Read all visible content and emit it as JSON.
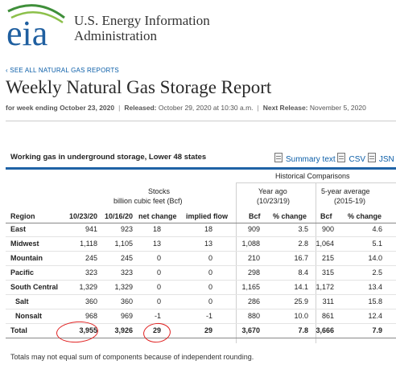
{
  "header": {
    "logo_text": "eia",
    "agency_line1": "U.S. Energy Information",
    "agency_line2": "Administration"
  },
  "back_link": "‹ SEE ALL NATURAL GAS REPORTS",
  "title": "Weekly Natural Gas Storage Report",
  "meta": {
    "week_label": "for week ending October 23, 2020",
    "released_label": "Released:",
    "released_value": "October 29, 2020 at 10:30 a.m.",
    "next_label": "Next Release:",
    "next_value": "November 5, 2020"
  },
  "section_title": "Working gas in underground storage, Lower 48 states",
  "downloads": {
    "summary": "Summary text",
    "csv": "CSV",
    "json": "JSN",
    "icon": "document-icon"
  },
  "table": {
    "historical_title": "Historical Comparisons",
    "stocks_title": "Stocks",
    "stocks_sub": "billion cubic feet (Bcf)",
    "year_ago_title": "Year ago",
    "year_ago_sub": "(10/23/19)",
    "five_year_title": "5-year average",
    "five_year_sub": "(2015-19)",
    "columns": [
      "Region",
      "10/23/20",
      "10/16/20",
      "net change",
      "implied flow",
      "Bcf",
      "% change",
      "Bcf",
      "% change"
    ],
    "rows": [
      {
        "region": "East",
        "c1": "941",
        "c2": "923",
        "net": "18",
        "flow": "18",
        "ya_bcf": "909",
        "ya_pct": "3.5",
        "fy_bcf": "900",
        "fy_pct": "4.6"
      },
      {
        "region": "Midwest",
        "c1": "1,118",
        "c2": "1,105",
        "net": "13",
        "flow": "13",
        "ya_bcf": "1,088",
        "ya_pct": "2.8",
        "fy_bcf": "1,064",
        "fy_pct": "5.1"
      },
      {
        "region": "Mountain",
        "c1": "245",
        "c2": "245",
        "net": "0",
        "flow": "0",
        "ya_bcf": "210",
        "ya_pct": "16.7",
        "fy_bcf": "215",
        "fy_pct": "14.0"
      },
      {
        "region": "Pacific",
        "c1": "323",
        "c2": "323",
        "net": "0",
        "flow": "0",
        "ya_bcf": "298",
        "ya_pct": "8.4",
        "fy_bcf": "315",
        "fy_pct": "2.5"
      },
      {
        "region": "South Central",
        "c1": "1,329",
        "c2": "1,329",
        "net": "0",
        "flow": "0",
        "ya_bcf": "1,165",
        "ya_pct": "14.1",
        "fy_bcf": "1,172",
        "fy_pct": "13.4"
      },
      {
        "region": "Salt",
        "c1": "360",
        "c2": "360",
        "net": "0",
        "flow": "0",
        "ya_bcf": "286",
        "ya_pct": "25.9",
        "fy_bcf": "311",
        "fy_pct": "15.8"
      },
      {
        "region": "Nonsalt",
        "c1": "968",
        "c2": "969",
        "net": "-1",
        "flow": "-1",
        "ya_bcf": "880",
        "ya_pct": "10.0",
        "fy_bcf": "861",
        "fy_pct": "12.4"
      }
    ],
    "total": {
      "region": "Total",
      "c1": "3,955",
      "c2": "3,926",
      "net": "29",
      "flow": "29",
      "ya_bcf": "3,670",
      "ya_pct": "7.8",
      "fy_bcf": "3,666",
      "fy_pct": "7.9"
    }
  },
  "footnote": "Totals may not equal sum of components because of independent rounding.",
  "colors": {
    "accent": "#1f63a6",
    "link": "#0b5ea8",
    "annotation": "#e02020",
    "logo_green": "#3f8f3a",
    "logo_blue": "#1f5fa0"
  }
}
